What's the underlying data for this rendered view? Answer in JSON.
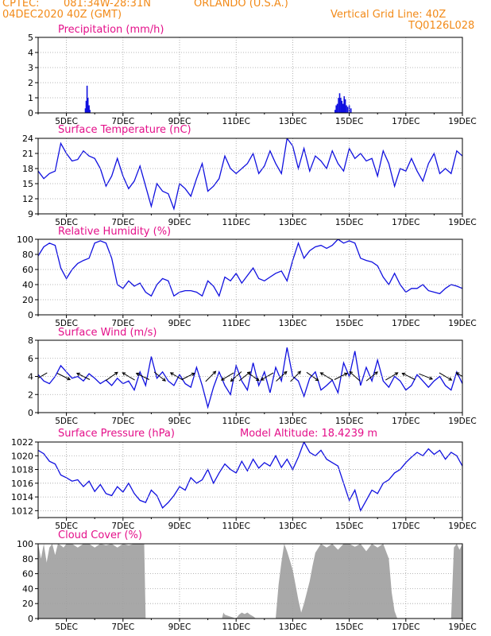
{
  "header": {
    "source": "CPTEC:",
    "coords": "081:34W-28:31N",
    "location": "ORLANDO (U.S.A.)",
    "datetime": "04DEC2020 40Z (GMT)",
    "grid_note": "Vertical Grid Line: 40Z",
    "run_code": "TQ0126L028"
  },
  "colors": {
    "header": "#f28a18",
    "title": "#e4108a",
    "line": "#1010e0",
    "bar": "#1010e0",
    "cloud": "#a8a8a8",
    "arrow": "#000000",
    "grid": "#a0a0a0"
  },
  "chart_data": [
    {
      "type": "bar",
      "title": "Precipitation (mm/h)",
      "x_labels": [
        "5DEC",
        "7DEC",
        "9DEC",
        "11DEC",
        "13DEC",
        "15DEC",
        "17DEC",
        "19DEC"
      ],
      "ylim": [
        0,
        5
      ],
      "yticks": [
        0,
        1,
        2,
        3,
        4,
        5
      ],
      "grid": true,
      "x": [
        5.67,
        5.7,
        5.73,
        5.76,
        5.8,
        5.83,
        14.5,
        14.54,
        14.58,
        14.62,
        14.66,
        14.7,
        14.74,
        14.78,
        14.82,
        14.86,
        14.9,
        14.94,
        15.0,
        15.06
      ],
      "values": [
        0.3,
        0.8,
        1.8,
        1.0,
        0.5,
        0.2,
        0.2,
        0.5,
        0.6,
        1.0,
        1.3,
        1.0,
        0.8,
        0.6,
        1.1,
        0.9,
        0.5,
        0.4,
        0.5,
        0.3
      ]
    },
    {
      "type": "line",
      "title": "Surface Temperature (nC)",
      "x_labels": [
        "5DEC",
        "7DEC",
        "9DEC",
        "11DEC",
        "13DEC",
        "15DEC",
        "17DEC",
        "19DEC"
      ],
      "ylim": [
        9,
        24
      ],
      "yticks": [
        9,
        12,
        15,
        18,
        21,
        24
      ],
      "grid": true,
      "x": [
        4.0,
        4.2,
        4.4,
        4.6,
        4.8,
        5.0,
        5.2,
        5.4,
        5.6,
        5.8,
        6.0,
        6.2,
        6.4,
        6.6,
        6.8,
        7.0,
        7.2,
        7.4,
        7.6,
        7.8,
        8.0,
        8.2,
        8.4,
        8.6,
        8.8,
        9.0,
        9.2,
        9.4,
        9.6,
        9.8,
        10.0,
        10.2,
        10.4,
        10.6,
        10.8,
        11.0,
        11.2,
        11.4,
        11.6,
        11.8,
        12.0,
        12.2,
        12.4,
        12.6,
        12.8,
        13.0,
        13.2,
        13.4,
        13.6,
        13.8,
        14.0,
        14.2,
        14.4,
        14.6,
        14.8,
        15.0,
        15.2,
        15.4,
        15.6,
        15.8,
        16.0,
        16.2,
        16.4,
        16.6,
        16.8,
        17.0,
        17.2,
        17.4,
        17.6,
        17.8,
        18.0,
        18.2,
        18.4,
        18.6,
        18.8,
        19.0
      ],
      "series": [
        {
          "values": [
            17.5,
            16.0,
            17.0,
            17.5,
            23.0,
            21.0,
            19.5,
            19.8,
            21.5,
            20.5,
            20.0,
            18.0,
            14.5,
            16.5,
            20.0,
            16.5,
            14.0,
            15.5,
            18.5,
            14.5,
            10.5,
            15.0,
            13.5,
            13.0,
            10.0,
            15.0,
            14.0,
            12.5,
            16.0,
            19.0,
            13.5,
            14.5,
            16.0,
            20.5,
            18.0,
            17.0,
            18.0,
            19.0,
            21.0,
            17.0,
            18.5,
            21.5,
            19.0,
            17.0,
            24.0,
            22.5,
            18.0,
            22.0,
            17.5,
            20.5,
            19.5,
            18.0,
            21.5,
            19.0,
            17.5,
            22.0,
            20.0,
            21.0,
            19.5,
            20.0,
            16.5,
            21.5,
            19.0,
            14.5,
            18.0,
            17.5,
            20.0,
            17.5,
            15.5,
            19.0,
            21.0,
            17.0,
            18.0,
            17.0,
            21.5,
            20.5
          ]
        }
      ]
    },
    {
      "type": "line",
      "title": "Relative Humidity (%)",
      "x_labels": [
        "5DEC",
        "7DEC",
        "9DEC",
        "11DEC",
        "13DEC",
        "15DEC",
        "17DEC",
        "19DEC"
      ],
      "ylim": [
        0,
        100
      ],
      "yticks": [
        0,
        20,
        40,
        60,
        80,
        100
      ],
      "grid": true,
      "x": [
        4.0,
        4.2,
        4.4,
        4.6,
        4.8,
        5.0,
        5.2,
        5.4,
        5.6,
        5.8,
        6.0,
        6.2,
        6.4,
        6.6,
        6.8,
        7.0,
        7.2,
        7.4,
        7.6,
        7.8,
        8.0,
        8.2,
        8.4,
        8.6,
        8.8,
        9.0,
        9.2,
        9.4,
        9.6,
        9.8,
        10.0,
        10.2,
        10.4,
        10.6,
        10.8,
        11.0,
        11.2,
        11.4,
        11.6,
        11.8,
        12.0,
        12.2,
        12.4,
        12.6,
        12.8,
        13.0,
        13.2,
        13.4,
        13.6,
        13.8,
        14.0,
        14.2,
        14.4,
        14.6,
        14.8,
        15.0,
        15.2,
        15.4,
        15.6,
        15.8,
        16.0,
        16.2,
        16.4,
        16.6,
        16.8,
        17.0,
        17.2,
        17.4,
        17.6,
        17.8,
        18.0,
        18.2,
        18.4,
        18.6,
        18.8,
        19.0
      ],
      "series": [
        {
          "values": [
            78,
            90,
            95,
            92,
            62,
            48,
            60,
            68,
            72,
            75,
            95,
            98,
            95,
            75,
            40,
            35,
            45,
            38,
            42,
            30,
            25,
            40,
            48,
            45,
            25,
            30,
            32,
            32,
            30,
            25,
            45,
            38,
            25,
            50,
            45,
            55,
            42,
            52,
            62,
            48,
            45,
            50,
            55,
            58,
            45,
            72,
            95,
            75,
            85,
            90,
            92,
            88,
            92,
            100,
            95,
            98,
            95,
            75,
            72,
            70,
            65,
            50,
            40,
            55,
            40,
            30,
            35,
            35,
            40,
            32,
            30,
            28,
            35,
            40,
            38,
            35
          ]
        }
      ]
    },
    {
      "type": "line",
      "title": "Surface Wind (m/s)",
      "x_labels": [
        "5DEC",
        "7DEC",
        "9DEC",
        "11DEC",
        "13DEC",
        "15DEC",
        "17DEC",
        "19DEC"
      ],
      "ylim": [
        0,
        8
      ],
      "yticks": [
        0,
        2,
        4,
        6,
        8
      ],
      "grid": true,
      "x": [
        4.0,
        4.2,
        4.4,
        4.6,
        4.8,
        5.0,
        5.2,
        5.4,
        5.6,
        5.8,
        6.0,
        6.2,
        6.4,
        6.6,
        6.8,
        7.0,
        7.2,
        7.4,
        7.6,
        7.8,
        8.0,
        8.2,
        8.4,
        8.6,
        8.8,
        9.0,
        9.2,
        9.4,
        9.6,
        9.8,
        10.0,
        10.2,
        10.4,
        10.6,
        10.8,
        11.0,
        11.2,
        11.4,
        11.6,
        11.8,
        12.0,
        12.2,
        12.4,
        12.6,
        12.8,
        13.0,
        13.2,
        13.4,
        13.6,
        13.8,
        14.0,
        14.2,
        14.4,
        14.6,
        14.8,
        15.0,
        15.2,
        15.4,
        15.6,
        15.8,
        16.0,
        16.2,
        16.4,
        16.6,
        16.8,
        17.0,
        17.2,
        17.4,
        17.6,
        17.8,
        18.0,
        18.2,
        18.4,
        18.6,
        18.8,
        19.0
      ],
      "series": [
        {
          "values": [
            4.2,
            3.5,
            3.2,
            4.0,
            5.2,
            4.5,
            3.8,
            4.0,
            3.5,
            4.3,
            3.8,
            3.2,
            3.6,
            3.0,
            3.8,
            3.2,
            3.5,
            2.5,
            4.5,
            3.0,
            6.2,
            3.8,
            4.5,
            3.5,
            3.0,
            4.2,
            3.2,
            2.8,
            5.0,
            3.0,
            0.6,
            2.8,
            4.5,
            3.0,
            2.0,
            5.2,
            3.5,
            2.5,
            5.5,
            3.0,
            4.5,
            2.2,
            5.0,
            3.5,
            7.2,
            4.0,
            3.5,
            1.8,
            3.8,
            4.5,
            2.5,
            3.0,
            3.6,
            2.2,
            5.5,
            4.0,
            6.8,
            3.0,
            5.0,
            3.5,
            5.8,
            3.5,
            2.8,
            4.0,
            3.5,
            2.5,
            3.0,
            4.2,
            3.5,
            2.8,
            3.5,
            4.0,
            3.0,
            2.5,
            4.5,
            3.2
          ]
        }
      ],
      "arrows": {
        "x": [
          4.1,
          4.9,
          5.6,
          6.6,
          7.2,
          7.7,
          8.3,
          8.9,
          9.3,
          10.1,
          10.7,
          11.0,
          11.3,
          11.6,
          12.1,
          12.6,
          13.1,
          13.7,
          14.2,
          14.7,
          15.2,
          15.8,
          16.5,
          17.1,
          17.7,
          18.4,
          19.0
        ],
        "u": [
          -1,
          1,
          -1,
          1,
          -1,
          -1,
          1,
          -1,
          1,
          0.5,
          -1,
          -1,
          1,
          1,
          -1,
          1,
          0.5,
          1,
          -1,
          1,
          -1,
          1,
          1,
          -1,
          1,
          1,
          -1
        ],
        "v": [
          -0.6,
          -0.5,
          0.5,
          0.7,
          0.6,
          0.5,
          -0.8,
          0.6,
          0.5,
          0.5,
          -0.6,
          -0.9,
          0.8,
          -0.7,
          -0.6,
          0.9,
          0.5,
          -0.7,
          0.6,
          0.5,
          0.9,
          0.8,
          0.6,
          0.5,
          -0.4,
          -0.6,
          0.6
        ]
      }
    },
    {
      "type": "line",
      "title": "Surface Pressure (hPa)",
      "annotation": "Model Altitude: 18.4239 m",
      "x_labels": [
        "5DEC",
        "7DEC",
        "9DEC",
        "11DEC",
        "13DEC",
        "15DEC",
        "17DEC",
        "19DEC"
      ],
      "ylim": [
        1011,
        1022
      ],
      "yticks": [
        1012,
        1014,
        1016,
        1018,
        1020,
        1022
      ],
      "grid": true,
      "x": [
        4.0,
        4.2,
        4.4,
        4.6,
        4.8,
        5.0,
        5.2,
        5.4,
        5.6,
        5.8,
        6.0,
        6.2,
        6.4,
        6.6,
        6.8,
        7.0,
        7.2,
        7.4,
        7.6,
        7.8,
        8.0,
        8.2,
        8.4,
        8.6,
        8.8,
        9.0,
        9.2,
        9.4,
        9.6,
        9.8,
        10.0,
        10.2,
        10.4,
        10.6,
        10.8,
        11.0,
        11.2,
        11.4,
        11.6,
        11.8,
        12.0,
        12.2,
        12.4,
        12.6,
        12.8,
        13.0,
        13.2,
        13.4,
        13.6,
        13.8,
        14.0,
        14.2,
        14.4,
        14.6,
        14.8,
        15.0,
        15.2,
        15.4,
        15.6,
        15.8,
        16.0,
        16.2,
        16.4,
        16.6,
        16.8,
        17.0,
        17.2,
        17.4,
        17.6,
        17.8,
        18.0,
        18.2,
        18.4,
        18.6,
        18.8,
        19.0
      ],
      "series": [
        {
          "values": [
            1020.8,
            1020.3,
            1019.2,
            1018.8,
            1017.2,
            1016.8,
            1016.3,
            1016.5,
            1015.5,
            1016.3,
            1014.8,
            1015.8,
            1014.5,
            1014.2,
            1015.5,
            1014.7,
            1016.0,
            1014.5,
            1013.5,
            1013.2,
            1015.0,
            1014.2,
            1012.4,
            1013.2,
            1014.2,
            1015.5,
            1015.0,
            1016.8,
            1016.0,
            1016.5,
            1018.0,
            1016.0,
            1017.5,
            1018.8,
            1018.0,
            1017.5,
            1019.2,
            1017.8,
            1019.5,
            1018.2,
            1019.0,
            1018.5,
            1020.0,
            1018.3,
            1019.5,
            1018.0,
            1019.8,
            1022.0,
            1020.5,
            1020.0,
            1020.8,
            1019.5,
            1019.0,
            1018.5,
            1016.0,
            1013.5,
            1015.0,
            1012.0,
            1013.5,
            1015.0,
            1014.5,
            1016.0,
            1016.5,
            1017.5,
            1018.0,
            1019.0,
            1019.8,
            1020.5,
            1020.0,
            1021.0,
            1020.2,
            1020.8,
            1019.5,
            1020.5,
            1020.0,
            1018.5
          ]
        }
      ]
    },
    {
      "type": "area",
      "title": "Cloud Cover (%)",
      "x_labels": [
        "5DEC",
        "7DEC",
        "9DEC",
        "11DEC",
        "13DEC",
        "15DEC",
        "17DEC",
        "19DEC"
      ],
      "ylim": [
        0,
        100
      ],
      "yticks": [
        0,
        20,
        40,
        60,
        80,
        100
      ],
      "grid": true,
      "x": [
        4.0,
        4.1,
        4.2,
        4.3,
        4.4,
        4.5,
        4.6,
        4.7,
        4.8,
        4.9,
        5.0,
        5.2,
        5.4,
        5.6,
        5.8,
        6.0,
        6.2,
        6.4,
        6.6,
        6.8,
        7.0,
        7.2,
        7.4,
        7.6,
        7.75,
        7.8,
        9.0,
        10.0,
        10.5,
        10.55,
        10.6,
        11.0,
        11.1,
        11.2,
        11.3,
        11.4,
        11.5,
        11.6,
        11.7,
        12.0,
        12.4,
        12.5,
        12.6,
        12.7,
        12.8,
        12.9,
        13.0,
        13.1,
        13.2,
        13.3,
        13.4,
        13.5,
        13.6,
        13.7,
        13.8,
        14.0,
        14.2,
        14.4,
        14.6,
        14.8,
        15.0,
        15.2,
        15.4,
        15.6,
        15.8,
        16.0,
        16.2,
        16.4,
        16.5,
        16.6,
        16.7,
        17.0,
        18.0,
        18.6,
        18.7,
        18.8,
        18.9,
        19.0
      ],
      "values": [
        100,
        80,
        100,
        75,
        95,
        100,
        85,
        100,
        98,
        95,
        100,
        100,
        95,
        100,
        100,
        95,
        100,
        98,
        100,
        95,
        100,
        98,
        100,
        100,
        100,
        0,
        0,
        0,
        0,
        8,
        5,
        0,
        5,
        8,
        6,
        8,
        5,
        3,
        0,
        0,
        0,
        45,
        75,
        100,
        90,
        78,
        65,
        45,
        25,
        8,
        20,
        35,
        50,
        70,
        88,
        100,
        95,
        100,
        92,
        100,
        100,
        96,
        100,
        90,
        100,
        95,
        100,
        80,
        35,
        10,
        0,
        0,
        0,
        0,
        95,
        100,
        92,
        100
      ]
    }
  ]
}
